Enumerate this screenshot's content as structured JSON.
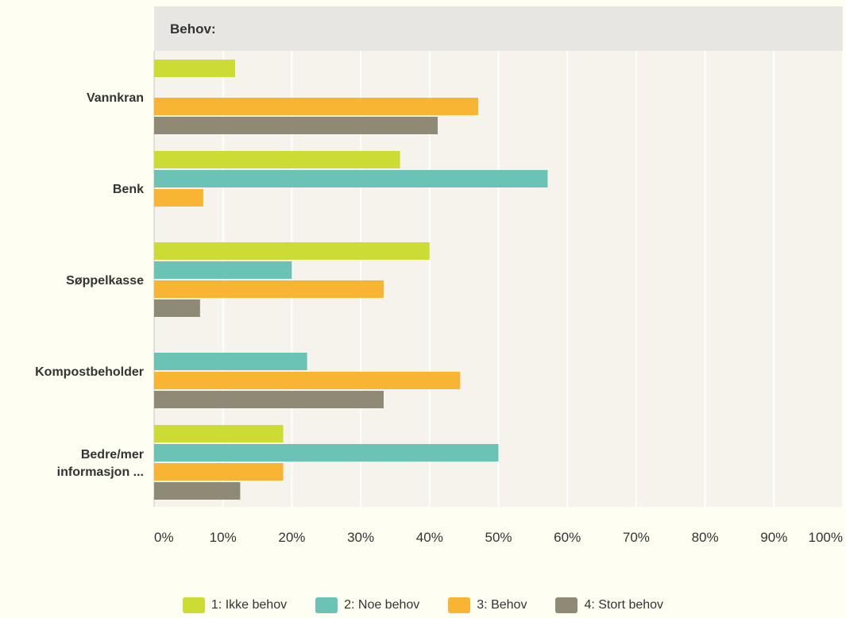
{
  "chart_data": {
    "type": "bar",
    "orientation": "horizontal",
    "title": "Behov:",
    "categories": [
      [
        "Vannkran"
      ],
      [
        "Benk"
      ],
      [
        "Søppelkasse"
      ],
      [
        "Kompostbeholder"
      ],
      [
        "Bedre/mer",
        "informasjon ..."
      ]
    ],
    "series": [
      {
        "name": "1: Ikke behov",
        "color": "#cddc35",
        "values": [
          11.76,
          35.71,
          40.0,
          0,
          18.75
        ]
      },
      {
        "name": "2: Noe behov",
        "color": "#6bc3b6",
        "values": [
          0,
          57.14,
          20.0,
          22.22,
          50.0
        ]
      },
      {
        "name": "3: Behov",
        "color": "#f8b534",
        "values": [
          47.06,
          7.14,
          33.33,
          44.44,
          18.75
        ]
      },
      {
        "name": "4: Stort behov",
        "color": "#8e8a75",
        "values": [
          41.18,
          0,
          6.67,
          33.33,
          12.5
        ]
      }
    ],
    "xlim": [
      0,
      100
    ],
    "xticks": [
      0,
      10,
      20,
      30,
      40,
      50,
      60,
      70,
      80,
      90,
      100
    ],
    "xtick_labels": [
      "0%",
      "10%",
      "20%",
      "30%",
      "40%",
      "50%",
      "60%",
      "70%",
      "80%",
      "90%",
      "100%"
    ],
    "grid": true,
    "legend_position": "bottom",
    "colors": {
      "page_background": "#fefef3",
      "plot_background": "#f5f3ec",
      "header_background": "#e7e6e3",
      "gridline": "#ffffff",
      "axis_line": "#c8c8c8",
      "label_text": "#333333"
    }
  }
}
